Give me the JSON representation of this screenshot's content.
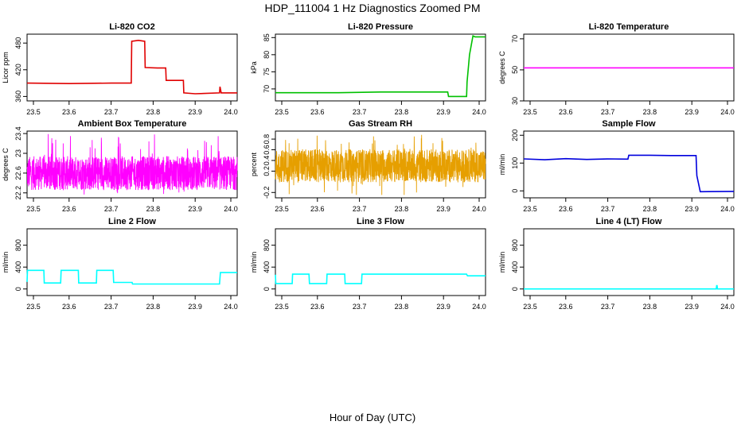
{
  "page": {
    "title": "HDP_111004  1 Hz Diagnostics Zoomed PM",
    "xlabel": "Hour of Day (UTC)"
  },
  "colors": {
    "red": "#e00000",
    "green": "#00c000",
    "magenta": "#ff00ff",
    "orange": "#e69f00",
    "blue": "#0000dd",
    "cyan": "#00ffff"
  },
  "chart_data": [
    {
      "type": "line",
      "title": "Li-820 CO2",
      "ylabel": "Licor ppm",
      "xlim": [
        23.5,
        24.0
      ],
      "ylim": [
        350,
        500
      ],
      "xticks": [
        "23.5",
        "23.6",
        "23.7",
        "23.8",
        "23.9",
        "24.0"
      ],
      "yticks": [
        360,
        420,
        480
      ],
      "series": [
        {
          "color": "#e00000",
          "x": [
            23.5,
            23.6,
            23.7,
            23.748,
            23.749,
            23.765,
            23.78,
            23.781,
            23.81,
            23.83,
            23.831,
            23.86,
            23.872,
            23.873,
            23.9,
            23.958,
            23.959,
            23.962,
            23.963,
            24.0
          ],
          "y": [
            390,
            389,
            390,
            390,
            484,
            486,
            484,
            425,
            424,
            424,
            396,
            396,
            396,
            368,
            366,
            368,
            382,
            368,
            368,
            368
          ]
        }
      ]
    },
    {
      "type": "line",
      "title": "Li-820 Pressure",
      "ylabel": "kPa",
      "xlim": [
        23.5,
        24.0
      ],
      "ylim": [
        66.5,
        86
      ],
      "xticks": [
        "23.5",
        "23.6",
        "23.7",
        "23.8",
        "23.9",
        "24.0"
      ],
      "yticks": [
        70,
        75,
        80,
        85
      ],
      "series": [
        {
          "color": "#00c000",
          "x": [
            23.5,
            23.65,
            23.75,
            23.8,
            23.91,
            23.912,
            23.955,
            23.956,
            23.962,
            23.97,
            23.975,
            24.0
          ],
          "y": [
            68.9,
            68.9,
            69.1,
            69.1,
            69.1,
            67.8,
            67.8,
            72,
            80,
            85.5,
            85.2,
            85.2
          ]
        }
      ]
    },
    {
      "type": "line",
      "title": "Li-820 Temperature",
      "ylabel": "degrees C",
      "xlim": [
        23.5,
        24.0
      ],
      "ylim": [
        30,
        73
      ],
      "xticks": [
        "23.5",
        "23.6",
        "23.7",
        "23.8",
        "23.9",
        "24.0"
      ],
      "yticks": [
        30,
        50,
        70
      ],
      "series": [
        {
          "color": "#ff00ff",
          "x": [
            23.5,
            24.0
          ],
          "y": [
            51.3,
            51.3
          ]
        }
      ]
    },
    {
      "type": "line",
      "title": "Ambient Box Temperature",
      "ylabel": "degrees C",
      "xlim": [
        23.5,
        24.0
      ],
      "ylim": [
        22.1,
        23.45
      ],
      "xticks": [
        "23.5",
        "23.6",
        "23.7",
        "23.8",
        "23.9",
        "24.0"
      ],
      "yticks": [
        22.2,
        22.6,
        23.0,
        23.4
      ],
      "series": [
        {
          "color": "#ff00ff",
          "noise": true,
          "x": [
            23.5,
            24.0
          ],
          "center": 22.6,
          "range": [
            22.15,
            23.4
          ]
        }
      ]
    },
    {
      "type": "line",
      "title": "Gas Stream RH",
      "ylabel": "percent",
      "xlim": [
        23.5,
        24.0
      ],
      "ylim": [
        -0.3,
        0.95
      ],
      "xticks": [
        "23.5",
        "23.6",
        "23.7",
        "23.8",
        "23.9",
        "24.0"
      ],
      "yticks": [
        -0.2,
        0.2,
        0.4,
        0.6,
        0.8
      ],
      "series": [
        {
          "color": "#e69f00",
          "noise": true,
          "x": [
            23.5,
            24.0
          ],
          "center": 0.3,
          "range": [
            -0.25,
            0.88
          ]
        }
      ]
    },
    {
      "type": "line",
      "title": "Sample Flow",
      "ylabel": "ml/min",
      "xlim": [
        23.5,
        24.0
      ],
      "ylim": [
        -25,
        215
      ],
      "xticks": [
        "23.5",
        "23.6",
        "23.7",
        "23.8",
        "23.9",
        "24.0"
      ],
      "yticks": [
        0,
        100,
        200
      ],
      "series": [
        {
          "color": "#0000dd",
          "x": [
            23.5,
            23.55,
            23.6,
            23.65,
            23.7,
            23.748,
            23.75,
            23.8,
            23.85,
            23.91,
            23.912,
            23.92,
            24.0
          ],
          "y": [
            115,
            112,
            116,
            113,
            115,
            114,
            128,
            128,
            127,
            127,
            55,
            -3,
            -2
          ]
        }
      ]
    },
    {
      "type": "line",
      "title": "Line 2 Flow",
      "ylabel": "ml/min",
      "xlim": [
        23.5,
        24.0
      ],
      "ylim": [
        -120,
        1100
      ],
      "xticks": [
        "23.5",
        "23.6",
        "23.7",
        "23.8",
        "23.9",
        "24.0"
      ],
      "yticks": [
        0,
        400,
        800
      ],
      "series": [
        {
          "color": "#00ffff",
          "x": [
            23.5,
            23.501,
            23.54,
            23.541,
            23.58,
            23.581,
            23.622,
            23.623,
            23.665,
            23.666,
            23.705,
            23.706,
            23.75,
            23.751,
            23.958,
            23.96,
            24.0
          ],
          "y": [
            130,
            340,
            340,
            110,
            110,
            340,
            340,
            110,
            110,
            340,
            340,
            120,
            120,
            90,
            90,
            300,
            300
          ]
        }
      ]
    },
    {
      "type": "line",
      "title": "Line 3 Flow",
      "ylabel": "ml/min",
      "xlim": [
        23.5,
        24.0
      ],
      "ylim": [
        -120,
        1100
      ],
      "xticks": [
        "23.5",
        "23.6",
        "23.7",
        "23.8",
        "23.9",
        "24.0"
      ],
      "yticks": [
        0,
        400,
        800
      ],
      "series": [
        {
          "color": "#00ffff",
          "x": [
            23.5,
            23.501,
            23.54,
            23.541,
            23.58,
            23.581,
            23.622,
            23.623,
            23.665,
            23.666,
            23.705,
            23.706,
            23.955,
            23.957,
            24.0
          ],
          "y": [
            260,
            100,
            100,
            270,
            270,
            100,
            100,
            270,
            270,
            100,
            100,
            270,
            270,
            240,
            240
          ]
        }
      ]
    },
    {
      "type": "line",
      "title": "Line 4 (LT) Flow",
      "ylabel": "ml/min",
      "xlim": [
        23.5,
        24.0
      ],
      "ylim": [
        -120,
        1100
      ],
      "xticks": [
        "23.5",
        "23.6",
        "23.7",
        "23.8",
        "23.9",
        "24.0"
      ],
      "yticks": [
        0,
        400,
        800
      ],
      "series": [
        {
          "color": "#00ffff",
          "x": [
            23.5,
            23.958,
            23.959,
            23.96,
            23.961,
            24.0
          ],
          "y": [
            0,
            0,
            60,
            60,
            0,
            0
          ]
        }
      ]
    }
  ]
}
